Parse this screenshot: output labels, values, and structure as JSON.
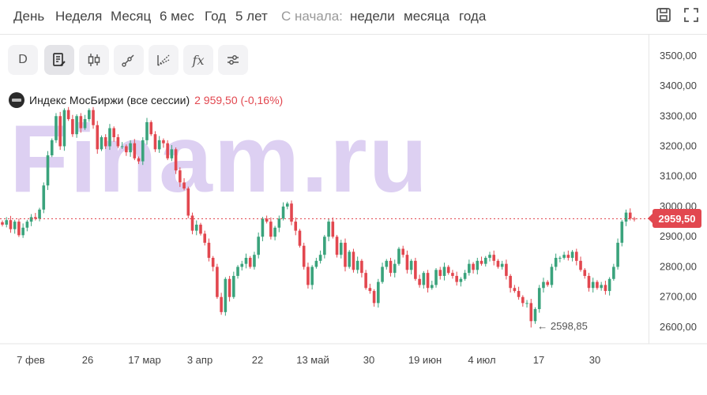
{
  "periods": [
    "День",
    "Неделя",
    "Месяц",
    "6 мес",
    "Год",
    "5 лет"
  ],
  "since_label": "С начала:",
  "since_periods": [
    "недели",
    "месяца",
    "года"
  ],
  "top_icons": [
    "save-icon",
    "fullscreen-icon"
  ],
  "toolbar": [
    {
      "name": "interval-d",
      "label": "D"
    },
    {
      "name": "chart-type",
      "icon": "document-pen-icon"
    },
    {
      "name": "candles",
      "icon": "candles-icon"
    },
    {
      "name": "draw-line",
      "icon": "line-tool-icon"
    },
    {
      "name": "fib",
      "icon": "fib-tool-icon"
    },
    {
      "name": "indicators",
      "label": "fx"
    },
    {
      "name": "settings",
      "icon": "sliders-icon"
    }
  ],
  "legend": {
    "name": "Индекс МосБиржи (все сессии)",
    "price": "2 959,50 (-0,16%)"
  },
  "watermark": "Finam.ru",
  "chart_data": {
    "type": "candlestick",
    "y_ticks": [
      "3500,00",
      "3400,00",
      "3300,00",
      "3200,00",
      "3100,00",
      "3000,00",
      "2900,00",
      "2800,00",
      "2700,00",
      "2600,00"
    ],
    "y_values": [
      3500,
      3400,
      3300,
      3200,
      3100,
      3000,
      2900,
      2800,
      2700,
      2600
    ],
    "x_ticks": [
      "7 фев",
      "26",
      "17 мар",
      "3 апр",
      "22",
      "13 май",
      "30",
      "19 июн",
      "4 июл",
      "17",
      "30"
    ],
    "last_price": 2959.5,
    "last_price_label": "2959,50",
    "low_annotation": "← 2598,85",
    "low_value": 2598.85,
    "ylim": [
      2545,
      3570
    ],
    "up_color": "#3aa37c",
    "down_color": "#e2474f",
    "closes": [
      2940,
      2955,
      2925,
      2950,
      2905,
      2930,
      2950,
      2965,
      2960,
      2990,
      3070,
      3170,
      3220,
      3300,
      3200,
      3320,
      3290,
      3240,
      3300,
      3260,
      3290,
      3320,
      3270,
      3190,
      3230,
      3200,
      3260,
      3230,
      3200,
      3200,
      3180,
      3210,
      3160,
      3150,
      3220,
      3280,
      3240,
      3190,
      3220,
      3210,
      3160,
      3190,
      3120,
      3080,
      3060,
      2970,
      2920,
      2940,
      2910,
      2880,
      2830,
      2800,
      2700,
      2650,
      2760,
      2700,
      2770,
      2800,
      2810,
      2830,
      2800,
      2840,
      2900,
      2960,
      2950,
      2900,
      2930,
      2960,
      3000,
      3010,
      2950,
      2920,
      2870,
      2800,
      2740,
      2800,
      2820,
      2840,
      2900,
      2950,
      2900,
      2840,
      2880,
      2800,
      2850,
      2790,
      2820,
      2780,
      2730,
      2720,
      2680,
      2750,
      2800,
      2820,
      2780,
      2810,
      2860,
      2840,
      2790,
      2820,
      2760,
      2740,
      2780,
      2730,
      2740,
      2790,
      2770,
      2800,
      2780,
      2770,
      2750,
      2760,
      2780,
      2810,
      2790,
      2820,
      2810,
      2830,
      2840,
      2820,
      2800,
      2810,
      2770,
      2730,
      2720,
      2700,
      2680,
      2680,
      2620,
      2660,
      2730,
      2750,
      2740,
      2800,
      2830,
      2830,
      2840,
      2830,
      2850,
      2820,
      2790,
      2770,
      2730,
      2750,
      2730,
      2740,
      2720,
      2760,
      2800,
      2880,
      2950,
      2980,
      2960,
      2959.5
    ]
  }
}
